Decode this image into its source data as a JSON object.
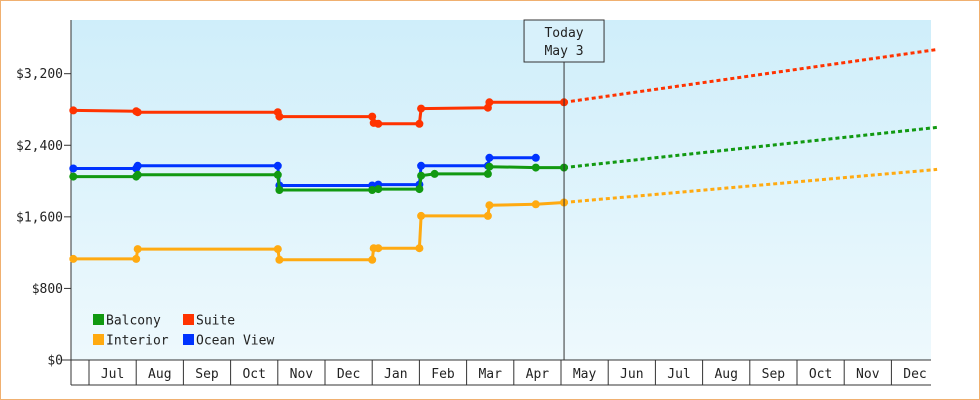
{
  "chart_data": {
    "type": "line",
    "y_ticks": [
      "$0",
      "$800",
      "$1,600",
      "$2,400",
      "$3,200"
    ],
    "y_tick_values": [
      0,
      800,
      1600,
      2400,
      3200
    ],
    "ylim": [
      0,
      3800
    ],
    "months": [
      "Jul",
      "Aug",
      "Sep",
      "Oct",
      "Nov",
      "Dec",
      "Jan",
      "Feb",
      "Mar",
      "Apr",
      "May",
      "Jun",
      "Jul",
      "Aug",
      "Sep",
      "Oct",
      "Nov",
      "Dec"
    ],
    "today_marker": {
      "line1": "Today",
      "line2": "May 3"
    },
    "grid": false,
    "background_gradient": [
      "#cfeefa",
      "#eef9fd"
    ],
    "legend_position": "bottom-left",
    "series": [
      {
        "name": "Suite",
        "color": "#ff3300",
        "history": [
          [
            "Jun 21",
            2790
          ],
          [
            "Aug 1",
            2780
          ],
          [
            "Aug 2",
            2770
          ],
          [
            "Nov 1",
            2770
          ],
          [
            "Nov 2",
            2720
          ],
          [
            "Jan 1",
            2720
          ],
          [
            "Jan 2",
            2650
          ],
          [
            "Jan 5",
            2640
          ],
          [
            "Feb 1",
            2640
          ],
          [
            "Feb 2",
            2810
          ],
          [
            "Mar 15",
            2820
          ],
          [
            "Mar 16",
            2880
          ],
          [
            "May 3",
            2880
          ]
        ],
        "forecast": [
          [
            "May 3",
            2880
          ],
          [
            "Dec 31",
            3470
          ]
        ]
      },
      {
        "name": "Ocean View",
        "color": "#0033ff",
        "history": [
          [
            "Jun 21",
            2140
          ],
          [
            "Aug 1",
            2140
          ],
          [
            "Aug 2",
            2170
          ],
          [
            "Nov 1",
            2170
          ],
          [
            "Nov 2",
            1950
          ],
          [
            "Jan 1",
            1950
          ],
          [
            "Jan 5",
            1960
          ],
          [
            "Feb 1",
            1960
          ],
          [
            "Feb 2",
            2170
          ],
          [
            "Mar 15",
            2170
          ],
          [
            "Mar 16",
            2260
          ],
          [
            "Apr 15",
            2260
          ]
        ],
        "forecast": []
      },
      {
        "name": "Balcony",
        "color": "#119911",
        "history": [
          [
            "Jun 21",
            2050
          ],
          [
            "Aug 1",
            2050
          ],
          [
            "Aug 2",
            2070
          ],
          [
            "Nov 1",
            2070
          ],
          [
            "Nov 2",
            1900
          ],
          [
            "Jan 1",
            1900
          ],
          [
            "Jan 5",
            1910
          ],
          [
            "Feb 1",
            1910
          ],
          [
            "Feb 2",
            2060
          ],
          [
            "Feb 10",
            2080
          ],
          [
            "Mar 15",
            2080
          ],
          [
            "Mar 16",
            2160
          ],
          [
            "Apr 15",
            2150
          ],
          [
            "May 3",
            2150
          ]
        ],
        "forecast": [
          [
            "May 3",
            2150
          ],
          [
            "Dec 31",
            2600
          ]
        ]
      },
      {
        "name": "Interior",
        "color": "#ffaa11",
        "history": [
          [
            "Jun 21",
            1130
          ],
          [
            "Aug 1",
            1130
          ],
          [
            "Aug 2",
            1240
          ],
          [
            "Nov 1",
            1240
          ],
          [
            "Nov 2",
            1120
          ],
          [
            "Jan 1",
            1120
          ],
          [
            "Jan 2",
            1250
          ],
          [
            "Jan 5",
            1250
          ],
          [
            "Feb 1",
            1250
          ],
          [
            "Feb 2",
            1610
          ],
          [
            "Mar 15",
            1610
          ],
          [
            "Mar 16",
            1730
          ],
          [
            "Apr 15",
            1740
          ],
          [
            "May 3",
            1760
          ]
        ],
        "forecast": [
          [
            "May 3",
            1760
          ],
          [
            "Dec 31",
            2130
          ]
        ]
      }
    ],
    "legend": [
      {
        "label": "Balcony",
        "color": "#119911"
      },
      {
        "label": "Suite",
        "color": "#ff3300"
      },
      {
        "label": "Interior",
        "color": "#ffaa11"
      },
      {
        "label": "Ocean View",
        "color": "#0033ff"
      }
    ]
  }
}
